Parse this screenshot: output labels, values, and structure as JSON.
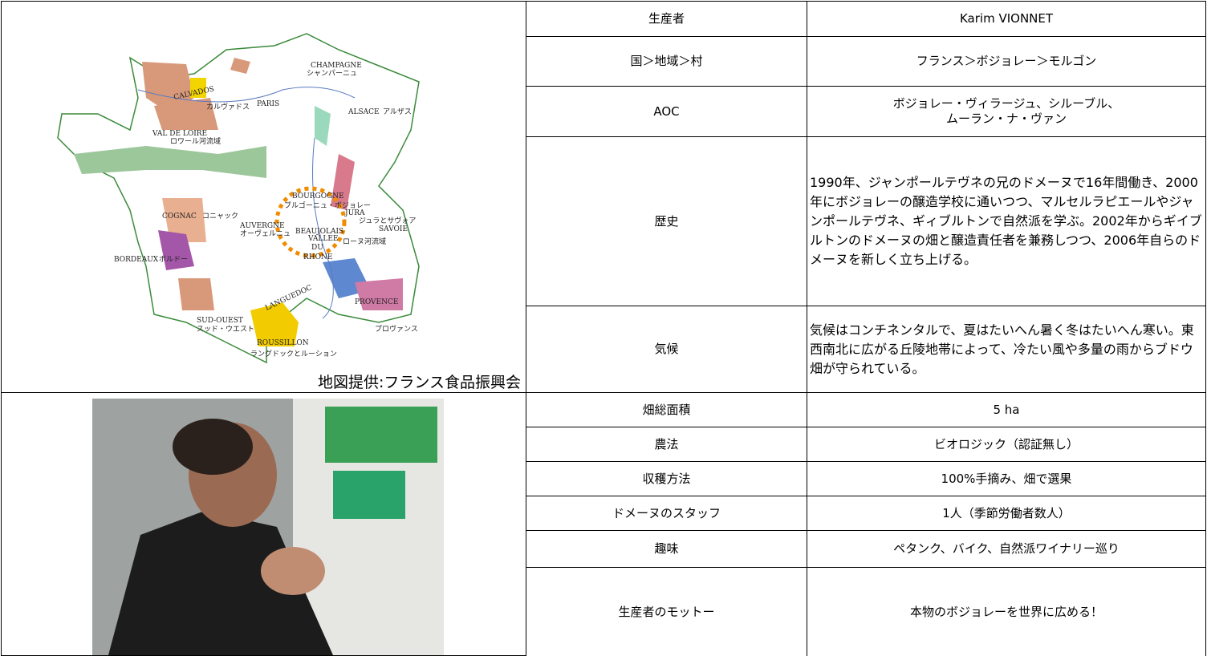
{
  "map": {
    "labels": [
      "CHAMPAGNE",
      "シャンパーニュ",
      "CALVADOS",
      "カルヴァドス",
      "PARIS",
      "ALSACE",
      "アルザス",
      "VAL DE LOIRE",
      "ロワール河流域",
      "BOURGOGNE",
      "ブルゴーニュ・ボジョレー",
      "JURA",
      "ジュラとサヴォア",
      "SAVOIE",
      "BEAUJOLAIS",
      "COGNAC",
      "コニャック",
      "AUVERGNE",
      "オーヴェルニュ",
      "VALLEE",
      "DU",
      "RHONE",
      "ローヌ河流域",
      "BORDEAUX",
      "ボルドー",
      "LANGUEDOC",
      "PROVENCE",
      "SUD-OUEST",
      "スッド・ウエスト",
      "プロヴァンス",
      "ROUSSILLON",
      "ラングドックとルーション"
    ],
    "caption": "地図提供:フランス食品振興会"
  },
  "table": {
    "rows": [
      [
        "生産者",
        "Karim VIONNET"
      ],
      [
        "国＞地域＞村",
        "フランス＞ボジョレー＞モルゴン"
      ],
      [
        "AOC",
        "ボジョレー・ヴィラージュ、シルーブル、\nムーラン・ナ・ヴァン"
      ],
      [
        "歴史",
        "1990年、ジャンポールテヴネの兄のドメーヌで16年間働き、2000年にボジョレーの醸造学校に通いつつ、マルセルラピエールやジャンポールテヴネ、ギィブルトンで自然派を学ぶ。2002年からギイブルトンのドメーヌの畑と醸造責任者を兼務しつつ、2006年自らのドメーヌを新しく立ち上げる。"
      ],
      [
        "気候",
        "気候はコンチネンタルで、夏はたいへん暑く冬はたいへん寒い。東西南北に広がる丘陵地帯によって、冷たい風や多量の雨からブドウ畑が守られている。"
      ],
      [
        "畑総面積",
        "5 ha"
      ],
      [
        "農法",
        "ビオロジック（認証無し）"
      ],
      [
        "収穫方法",
        "100%手摘み、畑で選果"
      ],
      [
        "ドメーヌのスタッフ",
        "1人（季節労働者数人）"
      ],
      [
        "趣味",
        "ペタンク、バイク、自然派ワイナリー巡り"
      ],
      [
        "生産者のモットー",
        "本物のボジョレーを世界に広める！"
      ]
    ]
  }
}
